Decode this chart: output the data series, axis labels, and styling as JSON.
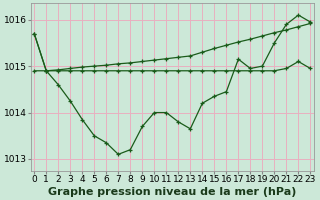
{
  "xlabel": "Graphe pression niveau de la mer (hPa)",
  "bg_color": "#cce8d8",
  "grid_color": "#e8b0c0",
  "line_color": "#1a5c1a",
  "ylim": [
    1012.75,
    1016.35
  ],
  "xlim": [
    -0.3,
    23.3
  ],
  "yticks": [
    1013,
    1014,
    1015,
    1016
  ],
  "xticks": [
    0,
    1,
    2,
    3,
    4,
    5,
    6,
    7,
    8,
    9,
    10,
    11,
    12,
    13,
    14,
    15,
    16,
    17,
    18,
    19,
    20,
    21,
    22,
    23
  ],
  "series1": [
    1015.7,
    1014.9,
    1014.6,
    1014.25,
    1013.85,
    1013.5,
    1013.35,
    1013.1,
    1013.2,
    1013.7,
    1014.0,
    1014.0,
    1013.8,
    1013.65,
    1014.2,
    1014.35,
    1014.45,
    1015.15,
    1014.95,
    1015.0,
    1015.5,
    1015.9,
    1016.1,
    1015.95
  ],
  "series2": [
    1014.9,
    1014.9,
    1014.9,
    1014.9,
    1014.9,
    1014.9,
    1014.9,
    1014.9,
    1014.9,
    1014.9,
    1014.9,
    1014.9,
    1014.9,
    1014.9,
    1014.9,
    1014.9,
    1014.9,
    1014.9,
    1014.9,
    1014.9,
    1014.9,
    1014.95,
    1015.1,
    1014.95
  ],
  "series3": [
    1015.7,
    1014.9,
    1014.92,
    1014.95,
    1014.98,
    1015.0,
    1015.02,
    1015.05,
    1015.07,
    1015.1,
    1015.13,
    1015.16,
    1015.19,
    1015.22,
    1015.3,
    1015.38,
    1015.45,
    1015.52,
    1015.58,
    1015.65,
    1015.72,
    1015.78,
    1015.85,
    1015.92
  ],
  "xlabel_fontsize": 8,
  "tick_fontsize": 6.5,
  "lw": 0.9,
  "ms": 3.5
}
